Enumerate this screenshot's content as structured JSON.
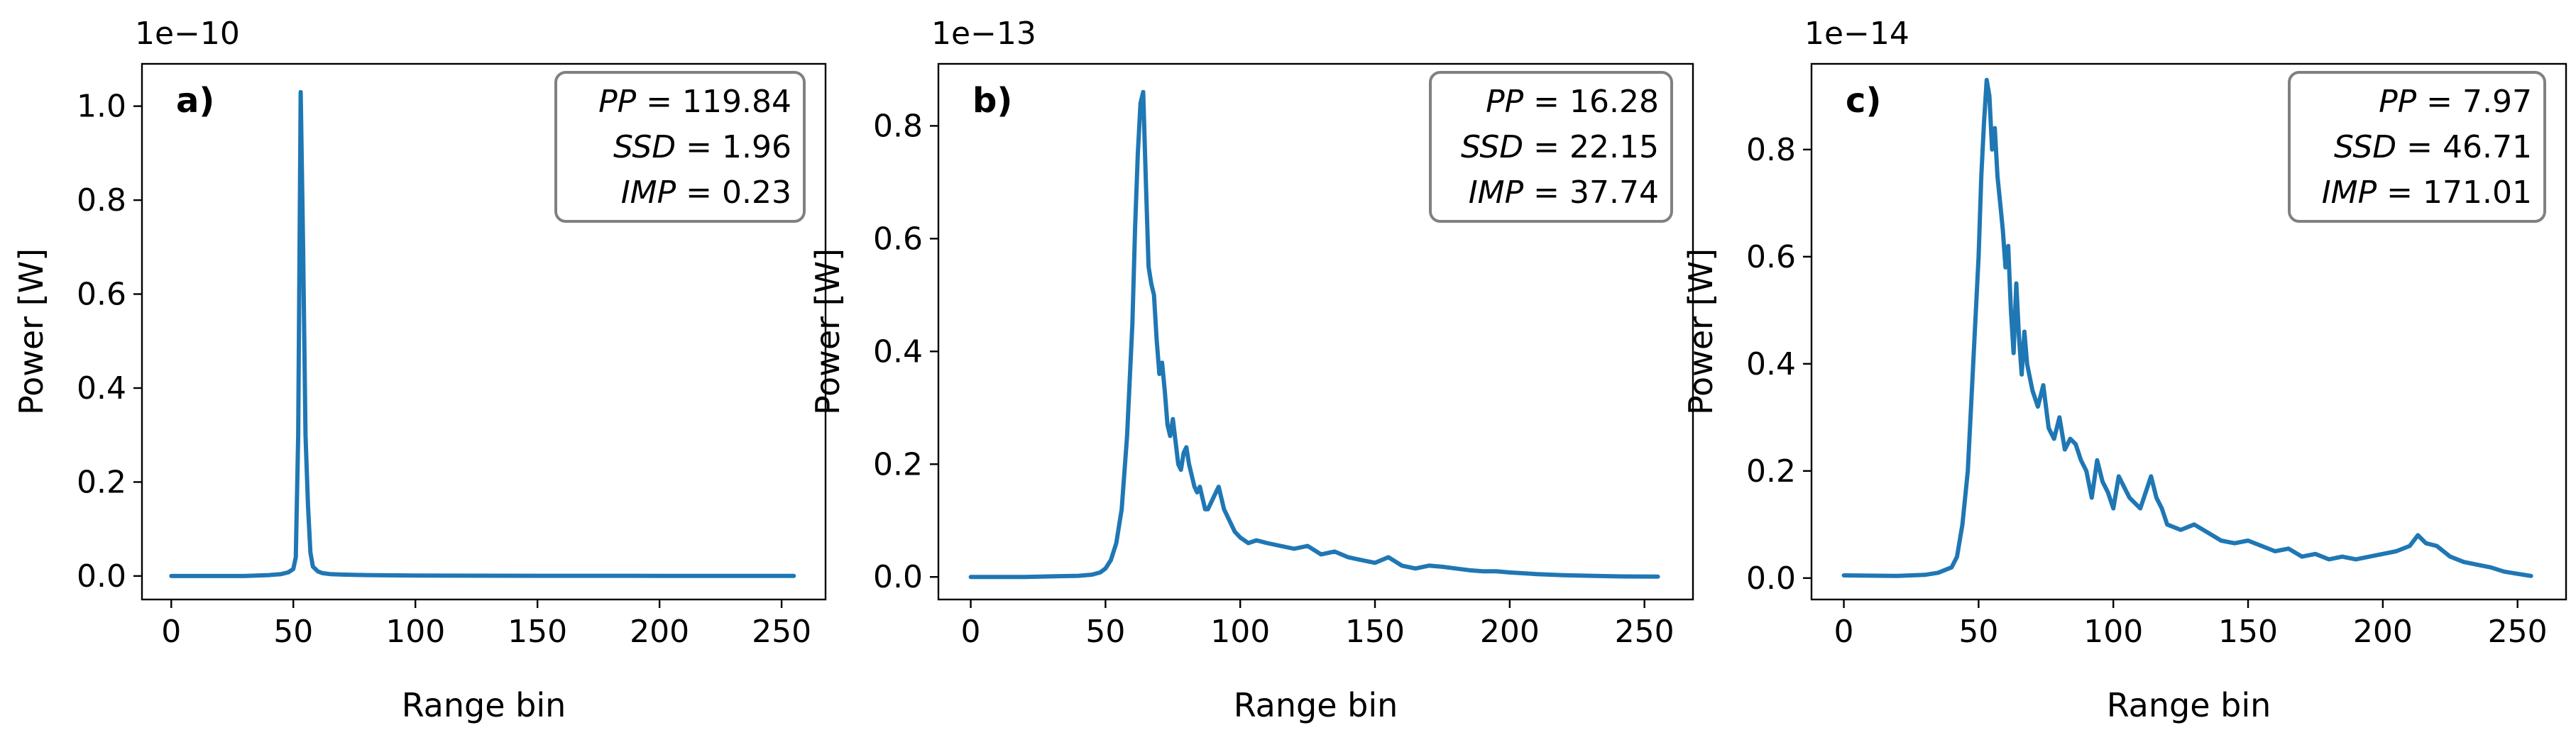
{
  "chart_data": [
    {
      "type": "line",
      "panel_label": "a)",
      "exponent_label": "1e−10",
      "xlabel": "Range bin",
      "ylabel": "Power [W]",
      "xlim": [
        -12,
        268
      ],
      "ylim": [
        -0.05,
        1.09
      ],
      "xticks": [
        0,
        50,
        100,
        150,
        200,
        250
      ],
      "xtick_labels": [
        "0",
        "50",
        "100",
        "150",
        "200",
        "250"
      ],
      "yticks": [
        0.0,
        0.2,
        0.4,
        0.6,
        0.8,
        1.0
      ],
      "ytick_labels": [
        "0.0",
        "0.2",
        "0.4",
        "0.6",
        "0.8",
        "1.0"
      ],
      "annotations": [
        {
          "name": "PP",
          "value": "119.84"
        },
        {
          "name": "SSD",
          "value": "1.96"
        },
        {
          "name": "IMP",
          "value": "0.23"
        }
      ],
      "series": [
        {
          "name": "Power",
          "color": "#1f77b4",
          "x": [
            0,
            10,
            20,
            30,
            40,
            45,
            48,
            50,
            51,
            52,
            53,
            54,
            55,
            56,
            57,
            58,
            60,
            62,
            65,
            70,
            80,
            100,
            150,
            200,
            255
          ],
          "y": [
            0.0,
            0.0,
            0.0,
            0.0,
            0.002,
            0.004,
            0.008,
            0.015,
            0.04,
            0.3,
            1.03,
            0.7,
            0.3,
            0.15,
            0.05,
            0.02,
            0.01,
            0.006,
            0.004,
            0.003,
            0.002,
            0.001,
            0.0005,
            0.0003,
            0.0002
          ]
        }
      ]
    },
    {
      "type": "line",
      "panel_label": "b)",
      "exponent_label": "1e−13",
      "xlabel": "Range bin",
      "ylabel": "Power [W]",
      "xlim": [
        -12,
        268
      ],
      "ylim": [
        -0.04,
        0.91
      ],
      "xticks": [
        0,
        50,
        100,
        150,
        200,
        250
      ],
      "xtick_labels": [
        "0",
        "50",
        "100",
        "150",
        "200",
        "250"
      ],
      "yticks": [
        0.0,
        0.2,
        0.4,
        0.6,
        0.8
      ],
      "ytick_labels": [
        "0.0",
        "0.2",
        "0.4",
        "0.6",
        "0.8"
      ],
      "annotations": [
        {
          "name": "PP",
          "value": "16.28"
        },
        {
          "name": "SSD",
          "value": "22.15"
        },
        {
          "name": "IMP",
          "value": "37.74"
        }
      ],
      "series": [
        {
          "name": "Power",
          "color": "#1f77b4",
          "x": [
            0,
            20,
            30,
            40,
            45,
            48,
            50,
            52,
            54,
            56,
            58,
            60,
            61,
            62,
            63,
            64,
            65,
            66,
            67,
            68,
            69,
            70,
            71,
            72,
            73,
            74,
            75,
            76,
            77,
            78,
            79,
            80,
            81,
            82,
            83,
            84,
            85,
            86,
            87,
            88,
            89,
            90,
            92,
            94,
            96,
            98,
            100,
            103,
            106,
            110,
            115,
            120,
            125,
            130,
            135,
            140,
            145,
            150,
            155,
            160,
            165,
            170,
            175,
            180,
            185,
            190,
            195,
            200,
            210,
            220,
            230,
            240,
            255
          ],
          "y": [
            0.0,
            0.0,
            0.001,
            0.002,
            0.004,
            0.008,
            0.015,
            0.03,
            0.06,
            0.12,
            0.25,
            0.45,
            0.62,
            0.75,
            0.84,
            0.86,
            0.7,
            0.55,
            0.52,
            0.5,
            0.42,
            0.36,
            0.38,
            0.33,
            0.27,
            0.25,
            0.28,
            0.24,
            0.2,
            0.19,
            0.22,
            0.23,
            0.2,
            0.18,
            0.16,
            0.15,
            0.16,
            0.14,
            0.12,
            0.12,
            0.13,
            0.14,
            0.16,
            0.12,
            0.1,
            0.08,
            0.07,
            0.06,
            0.065,
            0.06,
            0.055,
            0.05,
            0.055,
            0.04,
            0.045,
            0.035,
            0.03,
            0.025,
            0.035,
            0.02,
            0.015,
            0.02,
            0.018,
            0.015,
            0.012,
            0.01,
            0.01,
            0.008,
            0.005,
            0.003,
            0.002,
            0.001,
            0.0005
          ]
        }
      ]
    },
    {
      "type": "line",
      "panel_label": "c)",
      "exponent_label": "1e−14",
      "xlabel": "Range bin",
      "ylabel": "Power [W]",
      "xlim": [
        -12,
        268
      ],
      "ylim": [
        -0.04,
        0.96
      ],
      "xticks": [
        0,
        50,
        100,
        150,
        200,
        250
      ],
      "xtick_labels": [
        "0",
        "50",
        "100",
        "150",
        "200",
        "250"
      ],
      "yticks": [
        0.0,
        0.2,
        0.4,
        0.6,
        0.8
      ],
      "ytick_labels": [
        "0.0",
        "0.2",
        "0.4",
        "0.6",
        "0.8"
      ],
      "annotations": [
        {
          "name": "PP",
          "value": "7.97"
        },
        {
          "name": "SSD",
          "value": "46.71"
        },
        {
          "name": "IMP",
          "value": "171.01"
        }
      ],
      "series": [
        {
          "name": "Power",
          "color": "#1f77b4",
          "x": [
            0,
            20,
            30,
            35,
            40,
            42,
            44,
            46,
            48,
            50,
            51,
            52,
            53,
            54,
            55,
            56,
            57,
            58,
            59,
            60,
            61,
            62,
            63,
            64,
            65,
            66,
            67,
            68,
            70,
            72,
            74,
            76,
            78,
            80,
            82,
            84,
            86,
            88,
            90,
            92,
            94,
            96,
            98,
            100,
            102,
            104,
            106,
            108,
            110,
            112,
            114,
            116,
            118,
            120,
            125,
            130,
            135,
            140,
            145,
            150,
            155,
            160,
            165,
            170,
            175,
            180,
            185,
            190,
            195,
            200,
            205,
            210,
            213,
            216,
            220,
            225,
            230,
            235,
            240,
            245,
            250,
            255
          ],
          "y": [
            0.005,
            0.004,
            0.006,
            0.01,
            0.02,
            0.04,
            0.1,
            0.2,
            0.4,
            0.6,
            0.75,
            0.85,
            0.93,
            0.9,
            0.8,
            0.84,
            0.75,
            0.7,
            0.65,
            0.58,
            0.62,
            0.5,
            0.42,
            0.55,
            0.45,
            0.38,
            0.46,
            0.4,
            0.35,
            0.32,
            0.36,
            0.28,
            0.26,
            0.3,
            0.24,
            0.26,
            0.25,
            0.22,
            0.2,
            0.15,
            0.22,
            0.18,
            0.16,
            0.13,
            0.19,
            0.17,
            0.15,
            0.14,
            0.13,
            0.16,
            0.19,
            0.15,
            0.13,
            0.1,
            0.09,
            0.1,
            0.085,
            0.07,
            0.065,
            0.07,
            0.06,
            0.05,
            0.055,
            0.04,
            0.045,
            0.035,
            0.04,
            0.035,
            0.04,
            0.045,
            0.05,
            0.06,
            0.08,
            0.065,
            0.06,
            0.04,
            0.03,
            0.025,
            0.02,
            0.012,
            0.008,
            0.004
          ]
        }
      ]
    }
  ]
}
